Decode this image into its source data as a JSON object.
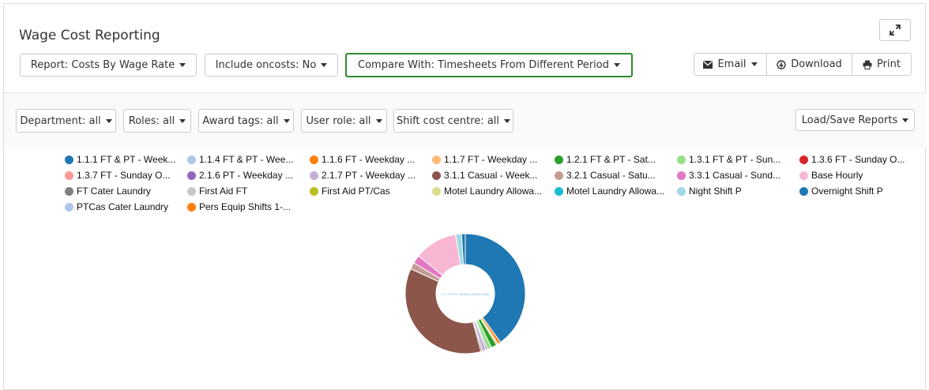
{
  "title": "Wage Cost Reporting",
  "toolbar": {
    "report": "Report: Costs By Wage Rate",
    "oncosts": "Include oncosts: No",
    "compare": "Compare With: Timesheets From Different Period",
    "email": "Email",
    "download": "Download",
    "print": "Print"
  },
  "filters": {
    "department": "Department: all",
    "roles": "Roles: all",
    "award_tags": "Award tags: all",
    "user_role": "User role: all",
    "shift_cost_centre": "Shift cost centre: all",
    "load_save": "Load/Save Reports"
  },
  "icons": {
    "expand": "expand-icon",
    "email": "envelope-icon",
    "download": "download-icon",
    "print": "print-icon"
  },
  "legend": [
    {
      "label": "1.1.1 FT & PT - Week...",
      "color": "#1f77b4"
    },
    {
      "label": "1.1.4 FT & PT - Wee...",
      "color": "#aec7e8"
    },
    {
      "label": "1.1.6 FT - Weekday ...",
      "color": "#ff7f0e"
    },
    {
      "label": "1.1.7 FT - Weekday ...",
      "color": "#ffbb78"
    },
    {
      "label": "1.2.1 FT & PT - Sat...",
      "color": "#2ca02c"
    },
    {
      "label": "1.3.1 FT & PT - Sun...",
      "color": "#98df8a"
    },
    {
      "label": "1.3.6 FT - Sunday O...",
      "color": "#d62728"
    },
    {
      "label": "1.3.7 FT - Sunday O...",
      "color": "#ff9896"
    },
    {
      "label": "2.1.6 PT - Weekday ...",
      "color": "#9467bd"
    },
    {
      "label": "2.1.7 PT - Weekday ...",
      "color": "#c5b0d5"
    },
    {
      "label": "3.1.1 Casual - Week...",
      "color": "#8c564b"
    },
    {
      "label": "3.2.1 Casual - Satu...",
      "color": "#c49c94"
    },
    {
      "label": "3.3.1 Casual - Sund...",
      "color": "#e377c2"
    },
    {
      "label": "Base Hourly",
      "color": "#f7b6d2"
    },
    {
      "label": "FT Cater Laundry",
      "color": "#7f7f7f"
    },
    {
      "label": "First Aid FT",
      "color": "#c7c7c7"
    },
    {
      "label": "First Aid PT/Cas",
      "color": "#bcbd22"
    },
    {
      "label": "Motel Laundry Allowa...",
      "color": "#dbdb8d"
    },
    {
      "label": "Motel Laundry Allowa...",
      "color": "#17becf"
    },
    {
      "label": "Night Shift P",
      "color": "#9edae5"
    },
    {
      "label": "Overnight Shift P",
      "color": "#1f77b4"
    },
    {
      "label": "PTCas Cater Laundry",
      "color": "#aec7e8"
    },
    {
      "label": "Pers Equip Shifts 1-...",
      "color": "#ff7f0e"
    }
  ],
  "chart_data": {
    "type": "pie",
    "donut": true,
    "center_label": "1.1.1 FT & PT - Weekday (Ordinary Hours)",
    "slices": [
      {
        "label": "1.1.1 FT & PT - Week...",
        "value": 40.0,
        "color": "#1f77b4"
      },
      {
        "label": "1.1.6 FT - Weekday ...",
        "value": 0.8,
        "color": "#ff7f0e"
      },
      {
        "label": "1.1.7 FT - Weekday ...",
        "value": 0.5,
        "color": "#ffbb78"
      },
      {
        "label": "1.2.1 FT & PT - Sat...",
        "value": 1.5,
        "color": "#2ca02c"
      },
      {
        "label": "1.3.1 FT & PT - Sun...",
        "value": 1.2,
        "color": "#98df8a"
      },
      {
        "label": "2.1.6 PT - Weekday ...",
        "value": 0.4,
        "color": "#9467bd"
      },
      {
        "label": "2.1.7 PT - Weekday ...",
        "value": 1.0,
        "color": "#c5b0d5"
      },
      {
        "label": "FT Cater Laundry",
        "value": 0.4,
        "color": "#7f7f7f"
      },
      {
        "label": "3.1.1 Casual - Week...",
        "value": 36.0,
        "color": "#8c564b"
      },
      {
        "label": "3.2.1 Casual - Satu...",
        "value": 1.8,
        "color": "#c49c94"
      },
      {
        "label": "3.3.1 Casual - Sund...",
        "value": 2.2,
        "color": "#e377c2"
      },
      {
        "label": "Base Hourly",
        "value": 11.6,
        "color": "#f7b6d2"
      },
      {
        "label": "Night Shift P",
        "value": 1.6,
        "color": "#9edae5"
      },
      {
        "label": "Overnight Shift P",
        "value": 1.0,
        "color": "#1f77b4"
      }
    ]
  }
}
